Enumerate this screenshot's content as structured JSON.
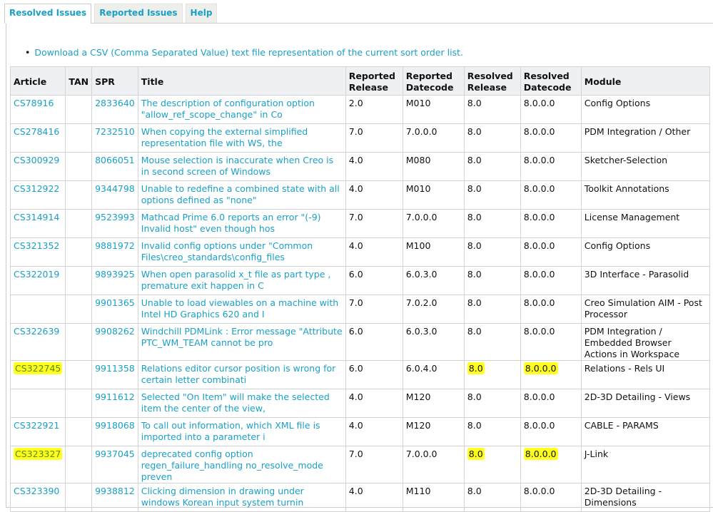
{
  "tabs": [
    {
      "label": "Resolved Issues",
      "active": true
    },
    {
      "label": "Reported Issues",
      "active": false
    },
    {
      "label": "Help",
      "active": false
    }
  ],
  "download_link": "Download a CSV (Comma Separated Value) text file representation of the current sort order list.",
  "highlight_color": "#ffff20",
  "link_color": "#1aa0c8",
  "columns": [
    "Article",
    "TAN",
    "SPR",
    "Title",
    "Reported Release",
    "Reported Datecode",
    "Resolved Release",
    "Resolved Datecode",
    "Module"
  ],
  "rows": [
    {
      "article": "CS78916",
      "tan": "",
      "spr": "2833640",
      "title": "The description of configuration option \"allow_ref_scope_change\" in Co",
      "rep_rel": "2.0",
      "rep_dc": "M010",
      "res_rel": "8.0",
      "res_dc": "8.0.0.0",
      "module": "Config Options",
      "highlighted": false
    },
    {
      "article": "CS278416",
      "tan": "",
      "spr": "7232510",
      "title": "When copying the external simplified representation file with WS, the",
      "rep_rel": "7.0",
      "rep_dc": "7.0.0.0",
      "res_rel": "8.0",
      "res_dc": "8.0.0.0",
      "module": "PDM Integration / Other",
      "highlighted": false
    },
    {
      "article": "CS300929",
      "tan": "",
      "spr": "8066051",
      "title": "Mouse selection is inaccurate when Creo is in second screen of Windows",
      "rep_rel": "4.0",
      "rep_dc": "M080",
      "res_rel": "8.0",
      "res_dc": "8.0.0.0",
      "module": "Sketcher-Selection",
      "highlighted": false
    },
    {
      "article": "CS312922",
      "tan": "",
      "spr": "9344798",
      "title": "Unable to redefine a combined state with all options defined as \"none\"",
      "rep_rel": "4.0",
      "rep_dc": "M010",
      "res_rel": "8.0",
      "res_dc": "8.0.0.0",
      "module": "Toolkit Annotations",
      "highlighted": false
    },
    {
      "article": "CS314914",
      "tan": "",
      "spr": "9523993",
      "title": "Mathcad Prime 6.0 reports an error \"(-9) Invalid host\" even though hos",
      "rep_rel": "7.0",
      "rep_dc": "7.0.0.0",
      "res_rel": "8.0",
      "res_dc": "8.0.0.0",
      "module": "License Management",
      "highlighted": false
    },
    {
      "article": "CS321352",
      "tan": "",
      "spr": "9881972",
      "title": "Invalid config options under \"Common Files\\creo_standards\\config_files",
      "rep_rel": "4.0",
      "rep_dc": "M100",
      "res_rel": "8.0",
      "res_dc": "8.0.0.0",
      "module": "Config Options",
      "highlighted": false
    },
    {
      "article": "CS322019",
      "tan": "",
      "spr": "9893925",
      "title": "When open parasolid x_t file as part type , premature exit happen in C",
      "rep_rel": "6.0",
      "rep_dc": "6.0.3.0",
      "res_rel": "8.0",
      "res_dc": "8.0.0.0",
      "module": "3D Interface - Parasolid",
      "highlighted": false
    },
    {
      "article": "",
      "tan": "",
      "spr": "9901365",
      "title": "Unable to load viewables on a machine with Intel HD Graphics 620 and I",
      "rep_rel": "7.0",
      "rep_dc": "7.0.2.0",
      "res_rel": "8.0",
      "res_dc": "8.0.0.0",
      "module": "Creo Simulation AIM - Post Processor",
      "highlighted": false
    },
    {
      "article": "CS322639",
      "tan": "",
      "spr": "9908262",
      "title": "Windchill PDMLink : Error message \"Attribute PTC_WM_TEAM cannot be pro",
      "rep_rel": "6.0",
      "rep_dc": "6.0.3.0",
      "res_rel": "8.0",
      "res_dc": "8.0.0.0",
      "module": "PDM Integration / Embedded Browser Actions in Workspace",
      "highlighted": false
    },
    {
      "article": "CS322745",
      "tan": "",
      "spr": "9911358",
      "title": "Relations editor cursor position is wrong for certain letter combinati",
      "rep_rel": "6.0",
      "rep_dc": "6.0.4.0",
      "res_rel": "8.0",
      "res_dc": "8.0.0.0",
      "module": "Relations - Rels UI",
      "highlighted": true
    },
    {
      "article": "",
      "tan": "",
      "spr": "9911612",
      "title": "Selected \"On Item\" will make the selected item the center of the view,",
      "rep_rel": "4.0",
      "rep_dc": "M120",
      "res_rel": "8.0",
      "res_dc": "8.0.0.0",
      "module": "2D-3D Detailing - Views",
      "highlighted": false
    },
    {
      "article": "CS322921",
      "tan": "",
      "spr": "9918068",
      "title": "To call out information, which XML file is imported into a parameter i",
      "rep_rel": "4.0",
      "rep_dc": "M120",
      "res_rel": "8.0",
      "res_dc": "8.0.0.0",
      "module": "CABLE - PARAMS",
      "highlighted": false
    },
    {
      "article": "CS323327",
      "tan": "",
      "spr": "9937045",
      "title": "deprecated config option regen_failure_handling no_resolve_mode preven",
      "rep_rel": "7.0",
      "rep_dc": "7.0.0.0",
      "res_rel": "8.0",
      "res_dc": "8.0.0.0",
      "module": "J-Link",
      "highlighted": true
    },
    {
      "article": "CS323390",
      "tan": "",
      "spr": "9938812",
      "title": "Clicking dimension in drawing under windows Korean input system turnin",
      "rep_rel": "4.0",
      "rep_dc": "M110",
      "res_rel": "8.0",
      "res_dc": "8.0.0.0",
      "module": "2D-3D Detailing - Dimensions",
      "highlighted": false
    }
  ]
}
